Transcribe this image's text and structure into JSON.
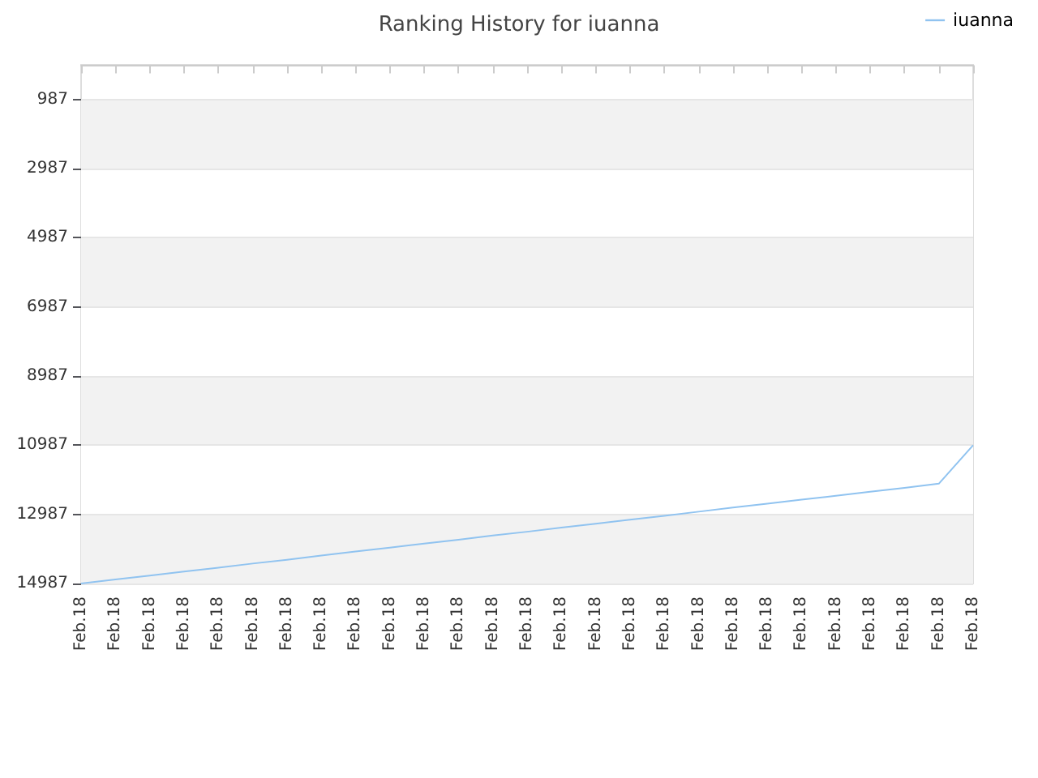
{
  "chart_data": {
    "type": "line",
    "title": "Ranking History for iuanna",
    "categories": [
      "Feb.18",
      "Feb.18",
      "Feb.18",
      "Feb.18",
      "Feb.18",
      "Feb.18",
      "Feb.18",
      "Feb.18",
      "Feb.18",
      "Feb.18",
      "Feb.18",
      "Feb.18",
      "Feb.18",
      "Feb.18",
      "Feb.18",
      "Feb.18",
      "Feb.18",
      "Feb.18",
      "Feb.18",
      "Feb.18",
      "Feb.18",
      "Feb.18",
      "Feb.18",
      "Feb.18",
      "Feb.18",
      "Feb.18",
      "Feb.18"
    ],
    "series": [
      {
        "name": "iuanna",
        "color": "#90c3f0",
        "values": [
          14987,
          14870,
          14760,
          14640,
          14530,
          14410,
          14300,
          14180,
          14060,
          13950,
          13830,
          13720,
          13600,
          13490,
          13370,
          13260,
          13140,
          13030,
          12910,
          12790,
          12680,
          12560,
          12450,
          12330,
          12220,
          12100,
          10987
        ]
      }
    ],
    "ylim": [
      14987,
      -13
    ],
    "yticks": [
      987,
      2987,
      4987,
      6987,
      8987,
      10987,
      12987,
      14987
    ],
    "grid": "y",
    "legend": "top right",
    "marker": "none",
    "line_style": "solid"
  }
}
